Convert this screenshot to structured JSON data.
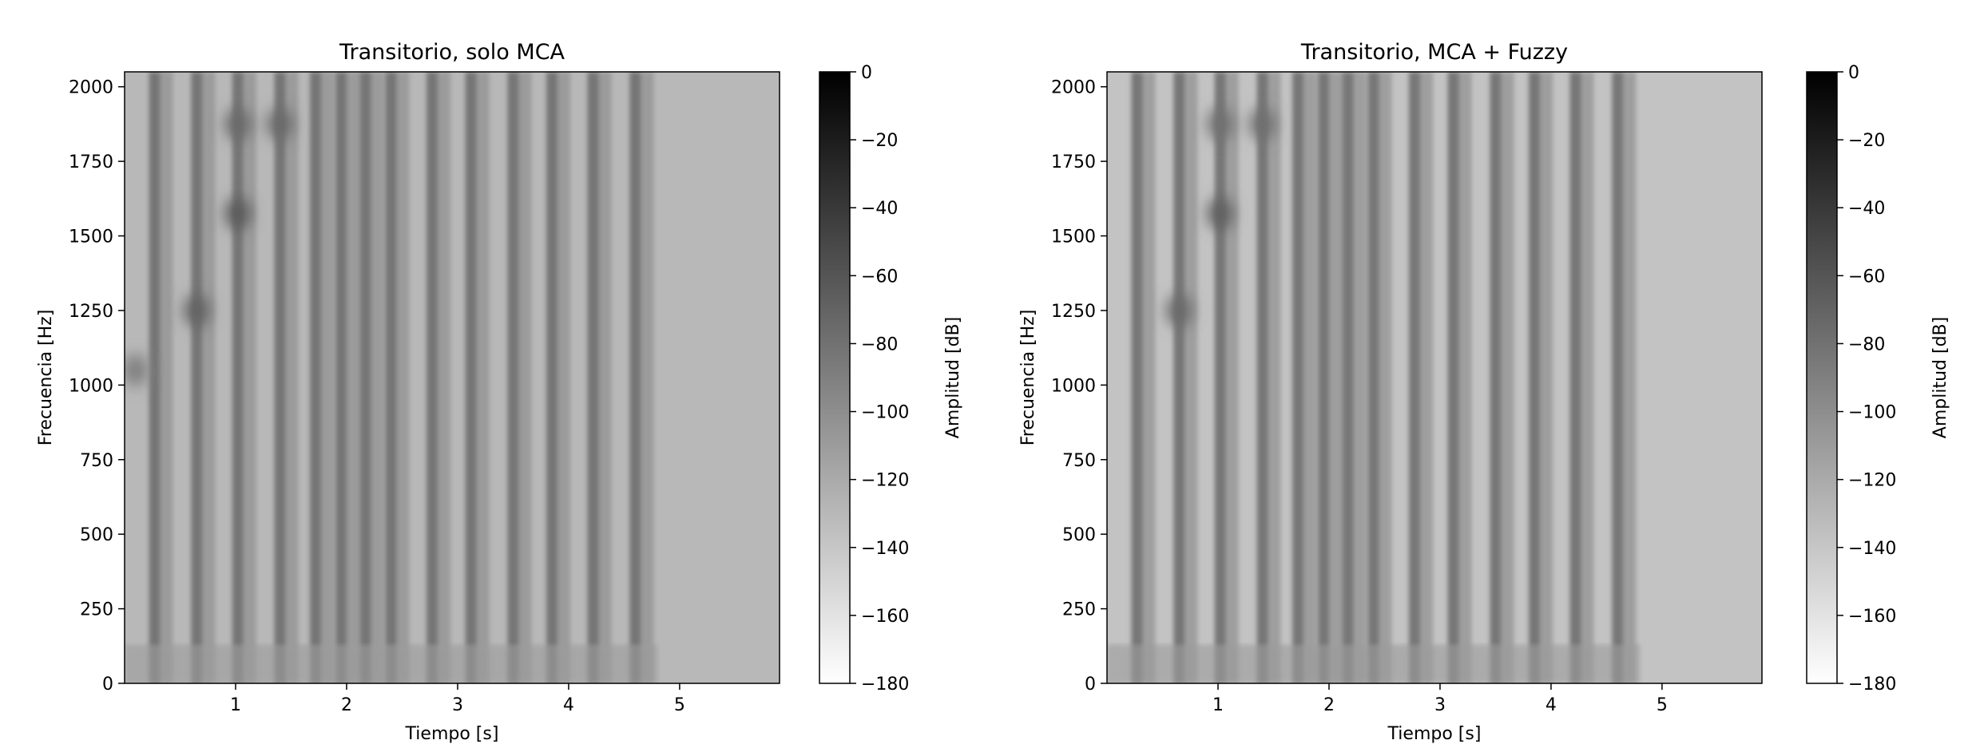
{
  "chart_data": [
    {
      "type": "heatmap",
      "title": "Transitorio, solo MCA",
      "xlabel": "Tiempo [s]",
      "ylabel": "Frecuencia [Hz]",
      "xlim": [
        0,
        5.9
      ],
      "ylim": [
        0,
        2050
      ],
      "x_ticks": [
        1,
        2,
        3,
        4,
        5
      ],
      "y_ticks": [
        0,
        250,
        500,
        750,
        1000,
        1250,
        1500,
        1750,
        2000
      ],
      "colorbar": {
        "label": "Amplitud [dB]",
        "range": [
          -180,
          0
        ],
        "ticks": [
          0,
          -20,
          -40,
          -60,
          -80,
          -100,
          -120,
          -140,
          -160,
          -180
        ],
        "colormap": "gray_r"
      },
      "transient_times_s": [
        0.27,
        0.65,
        1.02,
        1.4,
        1.72,
        1.95,
        2.17,
        2.4,
        2.77,
        3.12,
        3.5,
        3.85,
        4.22,
        4.6
      ],
      "tonal_peaks": [
        {
          "t": 0.65,
          "f": 1250,
          "level": -70
        },
        {
          "t": 1.02,
          "f": 1575,
          "level": -65
        },
        {
          "t": 1.02,
          "f": 1875,
          "level": -75
        },
        {
          "t": 1.4,
          "f": 1875,
          "level": -75
        },
        {
          "t": 0.1,
          "f": 1050,
          "level": -90
        }
      ],
      "background_level_db": -130
    },
    {
      "type": "heatmap",
      "title": "Transitorio, MCA + Fuzzy",
      "xlabel": "Tiempo [s]",
      "ylabel": "Frecuencia [Hz]",
      "xlim": [
        0,
        5.9
      ],
      "ylim": [
        0,
        2050
      ],
      "x_ticks": [
        1,
        2,
        3,
        4,
        5
      ],
      "y_ticks": [
        0,
        250,
        500,
        750,
        1000,
        1250,
        1500,
        1750,
        2000
      ],
      "colorbar": {
        "label": "Amplitud [dB]",
        "range": [
          -180,
          0
        ],
        "ticks": [
          0,
          -20,
          -40,
          -60,
          -80,
          -100,
          -120,
          -140,
          -160,
          -180
        ],
        "colormap": "gray_r"
      },
      "transient_times_s": [
        0.27,
        0.65,
        1.02,
        1.4,
        1.72,
        1.95,
        2.17,
        2.4,
        2.77,
        3.12,
        3.5,
        3.85,
        4.22,
        4.6
      ],
      "tonal_peaks": [
        {
          "t": 0.65,
          "f": 1250,
          "level": -75
        },
        {
          "t": 1.02,
          "f": 1575,
          "level": -68
        },
        {
          "t": 1.02,
          "f": 1875,
          "level": -80
        },
        {
          "t": 1.4,
          "f": 1875,
          "level": -78
        }
      ],
      "background_level_db": -138
    }
  ]
}
